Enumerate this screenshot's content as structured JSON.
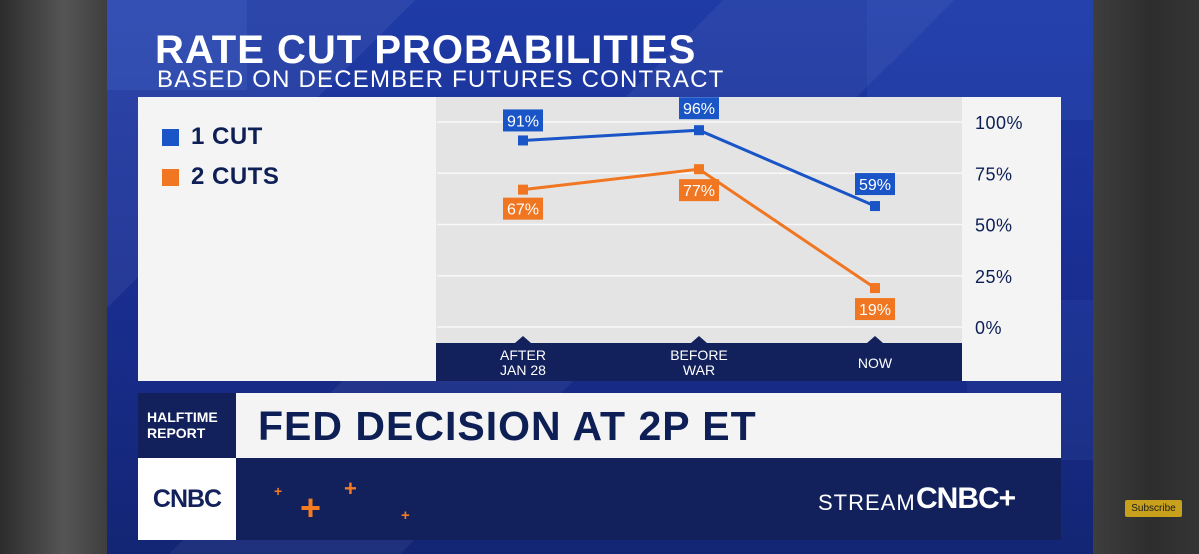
{
  "chart_data": {
    "type": "line",
    "title": "RATE CUT PROBABILITIES",
    "subtitle": "BASED ON DECEMBER FUTURES CONTRACT",
    "categories": [
      "AFTER JAN 28",
      "BEFORE WAR",
      "NOW"
    ],
    "category_lines": [
      [
        "AFTER",
        "JAN 28"
      ],
      [
        "BEFORE",
        "WAR"
      ],
      [
        "NOW"
      ]
    ],
    "series": [
      {
        "name": "1 CUT",
        "color": "#1a55c7",
        "values": [
          91,
          96,
          59
        ],
        "labels": [
          "91%",
          "96%",
          "59%"
        ]
      },
      {
        "name": "2 CUTS",
        "color": "#f07622",
        "values": [
          67,
          77,
          19
        ],
        "labels": [
          "67%",
          "77%",
          "19%"
        ]
      }
    ],
    "yticks": [
      "100%",
      "75%",
      "50%",
      "25%",
      "0%"
    ],
    "ytick_values": [
      100,
      75,
      50,
      25,
      0
    ],
    "ylim": [
      0,
      100
    ],
    "xlabel": "",
    "ylabel": "",
    "grid": true,
    "legend_position": "top-left"
  },
  "ticker": {
    "show_name": "HALFTIME REPORT",
    "show_name_lines": [
      "HALFTIME",
      "REPORT"
    ],
    "headline": "FED DECISION AT 2P ET"
  },
  "branding": {
    "network_logo": "CNBC",
    "stream_text": "STREAM",
    "stream_brand": "CNBC+",
    "accent_color": "#f47b20"
  },
  "overlay": {
    "subscribe_label": "Subscribe"
  }
}
